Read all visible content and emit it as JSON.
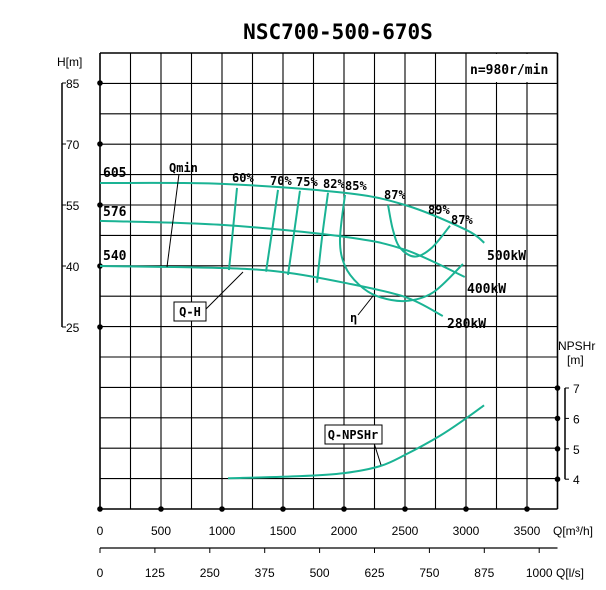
{
  "chart_data": {
    "type": "line",
    "title": "NSC700-500-670S",
    "speed_label": "n=980r/min",
    "colors": {
      "curve": "#1ab394",
      "grid": "#000000"
    },
    "x_axis": {
      "label": "Q[m³/h]",
      "ticks": [
        0,
        500,
        1000,
        1500,
        2000,
        2500,
        3000,
        3500
      ],
      "range": [
        0,
        3750
      ]
    },
    "x2_axis": {
      "label": "Q[l/s]",
      "ticks": [
        0,
        125,
        250,
        375,
        500,
        625,
        750,
        875,
        1000
      ]
    },
    "y_axis": {
      "label": "H[m]",
      "ticks": [
        85,
        70,
        55,
        40,
        25
      ],
      "range": [
        25,
        92.5
      ]
    },
    "y2_axis": {
      "label_line1": "NPSHr",
      "label_line2": "[m]",
      "ticks": [
        7,
        6,
        5,
        4
      ],
      "range": [
        3,
        7
      ]
    },
    "grid": true,
    "head_curves": [
      {
        "name": "605",
        "power": "500kW",
        "points": [
          [
            0,
            60.4
          ],
          [
            1000,
            60.2
          ],
          [
            2000,
            58
          ],
          [
            2500,
            55
          ],
          [
            3000,
            48.9
          ],
          [
            3150,
            45.7
          ]
        ]
      },
      {
        "name": "576",
        "power": "400kW",
        "points": [
          [
            0,
            51.1
          ],
          [
            1000,
            50.1
          ],
          [
            2000,
            47.2
          ],
          [
            2500,
            44
          ],
          [
            2990,
            37.3
          ]
        ]
      },
      {
        "name": "540",
        "power": "280kW",
        "points": [
          [
            0,
            40
          ],
          [
            1000,
            39.5
          ],
          [
            1500,
            38.5
          ],
          [
            2000,
            35.9
          ],
          [
            2500,
            32.4
          ],
          [
            2810,
            27.7
          ]
        ]
      }
    ],
    "efficiency_curves": [
      {
        "name": "60%",
        "points": [
          [
            1123,
            59.2
          ],
          [
            1090,
            49
          ],
          [
            1057,
            39
          ]
        ]
      },
      {
        "name": "70%",
        "points": [
          [
            1459,
            58.7
          ],
          [
            1410,
            48.5
          ],
          [
            1361,
            38.6
          ]
        ]
      },
      {
        "name": "75%",
        "points": [
          [
            1639,
            58.5
          ],
          [
            1590,
            48
          ],
          [
            1541,
            37.8
          ]
        ]
      },
      {
        "name": "82%",
        "points": [
          [
            1869,
            58
          ],
          [
            1820,
            47
          ],
          [
            1779,
            35.9
          ]
        ]
      },
      {
        "name": "85%",
        "points": [
          [
            2008,
            57.5
          ],
          [
            1967,
            46.4
          ],
          [
            2008,
            40
          ],
          [
            2120,
            35.5
          ],
          [
            2270,
            32.6
          ],
          [
            2500,
            31.4
          ],
          [
            2730,
            33.5
          ],
          [
            2975,
            40.5
          ]
        ]
      },
      {
        "name": "87%",
        "points": [
          [
            2361,
            55
          ],
          [
            2400,
            49
          ],
          [
            2459,
            44.5
          ],
          [
            2582,
            42.3
          ],
          [
            2720,
            44.5
          ],
          [
            2869,
            49.9
          ]
        ]
      }
    ],
    "efficiency_labels": [
      "60%",
      "70%",
      "75%",
      "82%",
      "85%",
      "87%",
      "89%",
      "87%"
    ],
    "npsh_curve": {
      "name": "Q-NPSHr",
      "points": [
        [
          1049,
          4.03
        ],
        [
          1639,
          4.1
        ],
        [
          2000,
          4.2
        ],
        [
          2295,
          4.43
        ],
        [
          2500,
          4.8
        ],
        [
          2787,
          5.43
        ],
        [
          3000,
          6
        ],
        [
          3148,
          6.43
        ]
      ]
    },
    "annotations": {
      "qmin": "Qmin",
      "qh": "Q-H",
      "eta": "η",
      "npsh": "Q-NPSHr"
    }
  }
}
